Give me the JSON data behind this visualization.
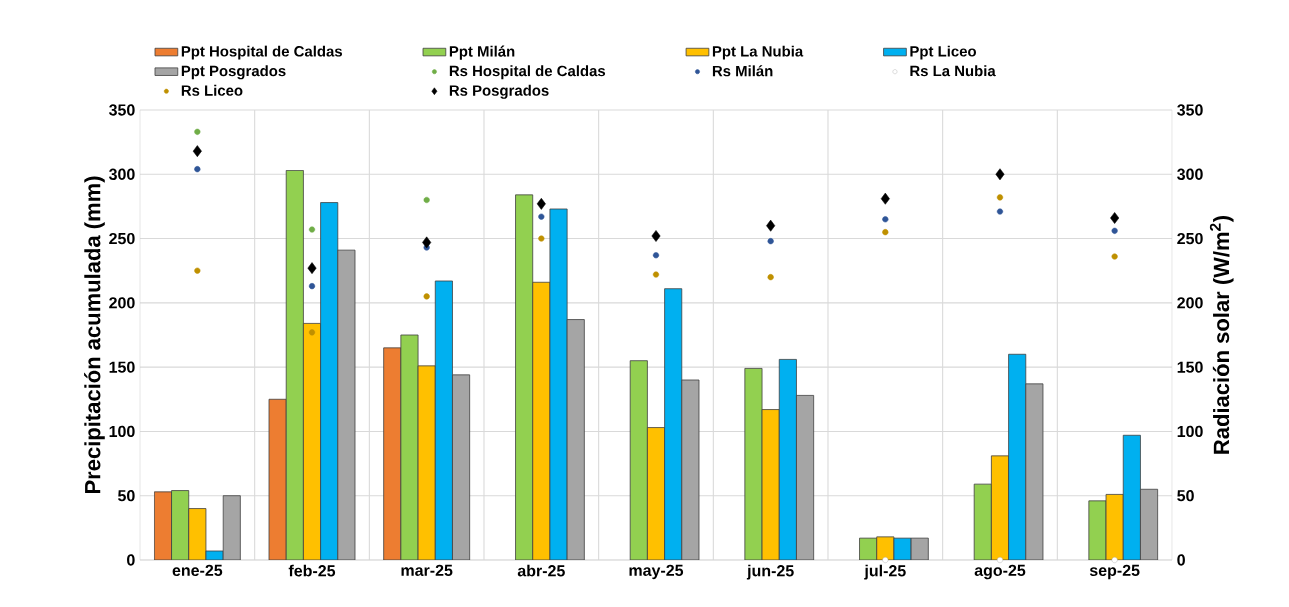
{
  "chart_data": {
    "type": "bar",
    "categories": [
      "ene-25",
      "feb-25",
      "mar-25",
      "abr-25",
      "may-25",
      "jun-25",
      "jul-25",
      "ago-25",
      "sep-25"
    ],
    "ylabel": "Precipitación acumulada (mm)",
    "y2label": "Radiación solar (W/m$^{2}$)",
    "ylim": [
      0,
      350
    ],
    "yticks": [
      0,
      50,
      100,
      150,
      200,
      250,
      300,
      350
    ],
    "y2lim": [
      0,
      350
    ],
    "y2ticks": [
      0,
      50,
      100,
      150,
      200,
      250,
      300,
      350
    ],
    "grid": true,
    "legend": "top",
    "series": [
      {
        "name": "Ppt Hospital de Caldas",
        "type": "bar",
        "color": "#ed7d31",
        "values": [
          53,
          125,
          165,
          null,
          null,
          null,
          null,
          null,
          null
        ]
      },
      {
        "name": "Ppt Milán",
        "type": "bar",
        "color": "#92d050",
        "values": [
          54,
          303,
          175,
          284,
          155,
          149,
          17,
          59,
          46
        ]
      },
      {
        "name": "Ppt La Nubia",
        "type": "bar",
        "color": "#ffc000",
        "values": [
          40,
          184,
          151,
          216,
          103,
          117,
          18,
          81,
          51
        ]
      },
      {
        "name": "Ppt Liceo",
        "type": "bar",
        "color": "#00b0f0",
        "values": [
          7,
          278,
          217,
          273,
          211,
          156,
          17,
          160,
          97
        ]
      },
      {
        "name": "Ppt Posgrados",
        "type": "bar",
        "color": "#a5a5a5",
        "values": [
          50,
          241,
          144,
          187,
          140,
          128,
          17,
          137,
          55
        ]
      },
      {
        "name": "Rs Hospital de Caldas",
        "type": "scatter",
        "axis": "y2",
        "marker": "circle",
        "color": "#70ad47",
        "values": [
          333,
          257,
          280,
          null,
          null,
          null,
          null,
          null,
          null
        ]
      },
      {
        "name": "Rs Milán",
        "type": "scatter",
        "axis": "y2",
        "marker": "circle",
        "color": "#2f5597",
        "values": [
          304,
          213,
          243,
          267,
          237,
          248,
          265,
          271,
          256
        ]
      },
      {
        "name": "Rs La Nubia",
        "type": "scatter",
        "axis": "y2",
        "marker": "circle",
        "color": "#ffffff",
        "values": [
          null,
          null,
          null,
          null,
          null,
          null,
          0,
          0,
          0
        ]
      },
      {
        "name": "Rs Liceo",
        "type": "scatter",
        "axis": "y2",
        "marker": "circle",
        "color": "#bf9000",
        "values": [
          225,
          177,
          205,
          250,
          222,
          220,
          255,
          282,
          236
        ]
      },
      {
        "name": "Rs Posgrados",
        "type": "scatter",
        "axis": "y2",
        "marker": "diamond",
        "color": "#000000",
        "values": [
          318,
          227,
          247,
          277,
          252,
          260,
          281,
          300,
          266
        ]
      }
    ]
  }
}
